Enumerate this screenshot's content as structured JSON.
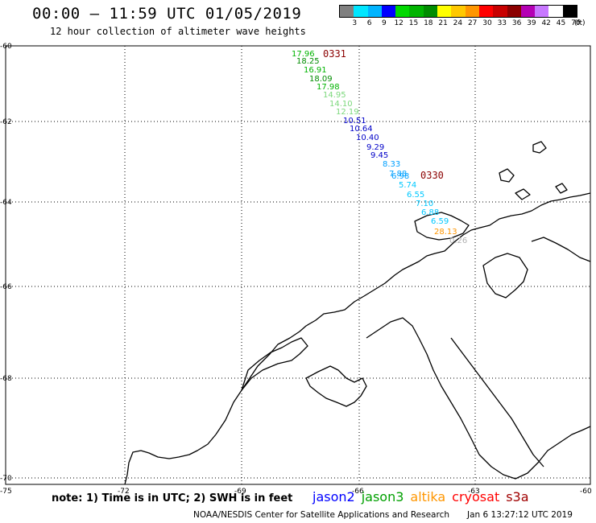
{
  "title": "00:00 – 11:59 UTC 01/05/2019",
  "subtitle": "12 hour collection of altimeter wave heights",
  "legend": {
    "unit": "(ft)",
    "colors": [
      "#808080",
      "#00e6ff",
      "#00b4ff",
      "#0000ff",
      "#00d800",
      "#00b400",
      "#008c00",
      "#ffff00",
      "#ffc800",
      "#ff9600",
      "#ff0000",
      "#c80000",
      "#8c0000",
      "#b400b4",
      "#c878ff",
      "#ffffff",
      "#000000"
    ],
    "labels": [
      "3",
      "6",
      "9",
      "12",
      "15",
      "18",
      "21",
      "24",
      "27",
      "30",
      "33",
      "36",
      "39",
      "42",
      "45",
      "70"
    ]
  },
  "axes": {
    "lat_labels": [
      "-60",
      "-62",
      "-64",
      "-66",
      "-68",
      "-70"
    ],
    "lon_labels": [
      "-75",
      "-72",
      "-69",
      "-66",
      "-63",
      "-60"
    ]
  },
  "time_labels": [
    {
      "text": "0331",
      "color": "#8b0000"
    },
    {
      "text": "0330",
      "color": "#8b0000"
    }
  ],
  "swh_readings": [
    {
      "value": "17.96",
      "color": "#00b400"
    },
    {
      "value": "18.25",
      "color": "#008c00"
    },
    {
      "value": "16.91",
      "color": "#00b400"
    },
    {
      "value": "18.09",
      "color": "#008c00"
    },
    {
      "value": "17.98",
      "color": "#00b400"
    },
    {
      "value": "14.95",
      "color": "#7cd87c"
    },
    {
      "value": "14.10",
      "color": "#7cd87c"
    },
    {
      "value": "12.19",
      "color": "#7cd87c"
    },
    {
      "value": "10.51",
      "color": "#0000c8"
    },
    {
      "value": "10.64",
      "color": "#0000c8"
    },
    {
      "value": "10.40",
      "color": "#0000c8"
    },
    {
      "value": "9.29",
      "color": "#0000c8"
    },
    {
      "value": "9.45",
      "color": "#0000c8"
    },
    {
      "value": "8.33",
      "color": "#00a0ff"
    },
    {
      "value": "7.88",
      "color": "#00a0ff"
    },
    {
      "value": "6.98",
      "color": "#00a0ff"
    },
    {
      "value": "5.74",
      "color": "#00c8ff"
    },
    {
      "value": "6.55",
      "color": "#00c8ff"
    },
    {
      "value": "7.10",
      "color": "#00c8ff"
    },
    {
      "value": "6.88",
      "color": "#00c8ff"
    },
    {
      "value": "6.59",
      "color": "#00c8ff"
    },
    {
      "value": "28.13",
      "color": "#ff9600"
    },
    {
      "value": "0.26",
      "color": "#b0b0b0"
    }
  ],
  "footnote": "note: 1) Time is in UTC; 2) SWH is in feet",
  "satellites": [
    {
      "name": "jason2",
      "color": "#0000ff"
    },
    {
      "name": "jason3",
      "color": "#00a000"
    },
    {
      "name": "altika",
      "color": "#ff9600"
    },
    {
      "name": "cryosat",
      "color": "#ff0000"
    },
    {
      "name": "s3a",
      "color": "#a00000"
    }
  ],
  "credit": "NOAA/NESDIS Center for Satellite Applications and Research",
  "generated": "Jan  6 13:27:12 UTC 2019"
}
